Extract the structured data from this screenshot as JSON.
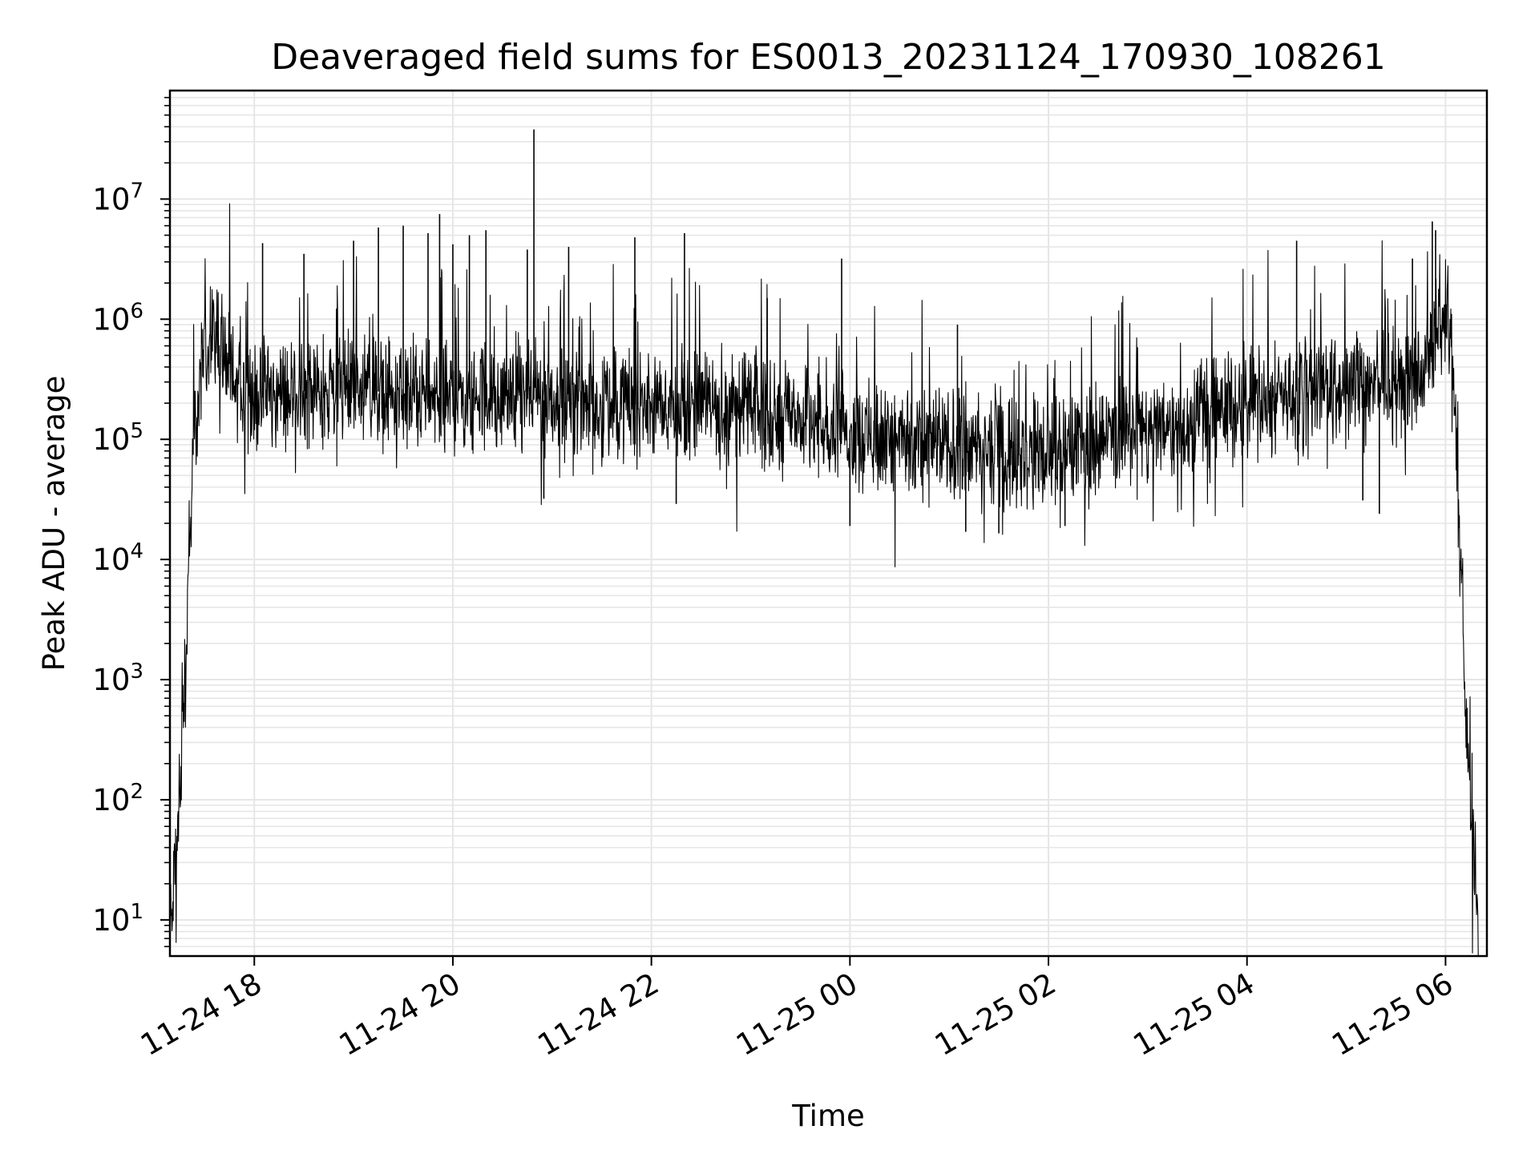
{
  "chart_data": {
    "type": "line",
    "title": "Deaveraged field sums for ES0013_20231124_170930_108261",
    "xlabel": "Time",
    "ylabel": "Peak ADU - average",
    "xscale": "time",
    "yscale": "log",
    "xlim": [
      "2023-11-24 17:09",
      "2023-11-25 06:25"
    ],
    "ylim": [
      5,
      80000000
    ],
    "grid": true,
    "x_ticks": [
      {
        "t": "2023-11-24 18:00",
        "label": "11-24 18"
      },
      {
        "t": "2023-11-24 20:00",
        "label": "11-24 20"
      },
      {
        "t": "2023-11-24 22:00",
        "label": "11-24 22"
      },
      {
        "t": "2023-11-25 00:00",
        "label": "11-25 00"
      },
      {
        "t": "2023-11-25 02:00",
        "label": "11-25 02"
      },
      {
        "t": "2023-11-25 04:00",
        "label": "11-25 04"
      },
      {
        "t": "2023-11-25 06:00",
        "label": "11-25 06"
      }
    ],
    "y_ticks": [
      {
        "value": 10,
        "base": "10",
        "exp": "1"
      },
      {
        "value": 100,
        "base": "10",
        "exp": "2"
      },
      {
        "value": 1000,
        "base": "10",
        "exp": "3"
      },
      {
        "value": 10000,
        "base": "10",
        "exp": "4"
      },
      {
        "value": 100000,
        "base": "10",
        "exp": "5"
      },
      {
        "value": 1000000,
        "base": "10",
        "exp": "6"
      },
      {
        "value": 10000000,
        "base": "10",
        "exp": "7"
      }
    ],
    "series": [
      {
        "color": "#000000",
        "envelope": {
          "x": [
            "2023-11-24 17:09",
            "2023-11-24 17:12",
            "2023-11-24 17:15",
            "2023-11-24 17:18",
            "2023-11-24 17:21",
            "2023-11-24 17:24",
            "2023-11-24 17:27",
            "2023-11-24 17:30",
            "2023-11-24 17:33",
            "2023-11-24 17:36",
            "2023-11-24 17:40",
            "2023-11-24 17:45",
            "2023-11-24 17:50",
            "2023-11-24 18:00",
            "2023-11-24 18:30",
            "2023-11-24 19:00",
            "2023-11-24 19:30",
            "2023-11-24 20:00",
            "2023-11-24 20:30",
            "2023-11-24 21:00",
            "2023-11-24 21:30",
            "2023-11-24 22:00",
            "2023-11-24 22:30",
            "2023-11-24 23:00",
            "2023-11-24 23:30",
            "2023-11-25 00:00",
            "2023-11-25 00:30",
            "2023-11-25 01:00",
            "2023-11-25 01:30",
            "2023-11-25 02:00",
            "2023-11-25 02:30",
            "2023-11-25 03:00",
            "2023-11-25 03:30",
            "2023-11-25 04:00",
            "2023-11-25 04:30",
            "2023-11-25 05:00",
            "2023-11-25 05:30",
            "2023-11-25 05:50",
            "2023-11-25 05:55",
            "2023-11-25 06:00",
            "2023-11-25 06:03",
            "2023-11-25 06:06",
            "2023-11-25 06:09",
            "2023-11-25 06:12",
            "2023-11-25 06:15",
            "2023-11-25 06:18",
            "2023-11-25 06:20"
          ],
          "y": [
            8,
            30,
            100,
            1000,
            15000,
            100000,
            300000,
            550000,
            750000,
            850000,
            700000,
            350000,
            250000,
            220000,
            250000,
            260000,
            240000,
            230000,
            220000,
            210000,
            200000,
            190000,
            185000,
            180000,
            160000,
            120000,
            100000,
            90000,
            80000,
            80000,
            100000,
            120000,
            150000,
            200000,
            250000,
            280000,
            300000,
            400000,
            700000,
            1200000,
            700000,
            150000,
            10000,
            500,
            80,
            20,
            5
          ]
        },
        "spikes": [
          {
            "t": "2023-11-24 18:05",
            "y": 4300000
          },
          {
            "t": "2023-11-24 18:30",
            "y": 3500000
          },
          {
            "t": "2023-11-24 19:00",
            "y": 4500000
          },
          {
            "t": "2023-11-24 19:15",
            "y": 5800000
          },
          {
            "t": "2023-11-24 19:30",
            "y": 6000000
          },
          {
            "t": "2023-11-24 19:45",
            "y": 5200000
          },
          {
            "t": "2023-11-24 20:00",
            "y": 4200000
          },
          {
            "t": "2023-11-24 19:52",
            "y": 7500000
          },
          {
            "t": "2023-11-24 20:10",
            "y": 5000000
          },
          {
            "t": "2023-11-24 20:20",
            "y": 5500000
          },
          {
            "t": "2023-11-24 20:45",
            "y": 3800000
          },
          {
            "t": "2023-11-24 20:49",
            "y": 38000000
          },
          {
            "t": "2023-11-24 21:10",
            "y": 4000000
          },
          {
            "t": "2023-11-24 21:50",
            "y": 4800000
          },
          {
            "t": "2023-11-24 22:20",
            "y": 5200000
          },
          {
            "t": "2023-11-24 23:10",
            "y": 1500000
          },
          {
            "t": "2023-11-24 23:55",
            "y": 3200000
          },
          {
            "t": "2023-11-25 01:05",
            "y": 900000
          },
          {
            "t": "2023-11-25 04:30",
            "y": 4500000
          },
          {
            "t": "2023-11-25 05:40",
            "y": 3200000
          },
          {
            "t": "2023-11-25 05:52",
            "y": 6500000
          },
          {
            "t": "2023-11-25 05:54",
            "y": 5500000
          }
        ],
        "dips": [
          {
            "t": "2023-11-24 20:55",
            "y": 32000
          },
          {
            "t": "2023-11-24 22:15",
            "y": 29000
          },
          {
            "t": "2023-11-25 00:00",
            "y": 19000
          },
          {
            "t": "2023-11-25 01:10",
            "y": 17000
          },
          {
            "t": "2023-11-25 01:30",
            "y": 16500
          },
          {
            "t": "2023-11-25 02:10",
            "y": 19000
          },
          {
            "t": "2023-11-25 05:10",
            "y": 31000
          },
          {
            "t": "2023-11-25 05:20",
            "y": 24000
          }
        ]
      }
    ]
  }
}
